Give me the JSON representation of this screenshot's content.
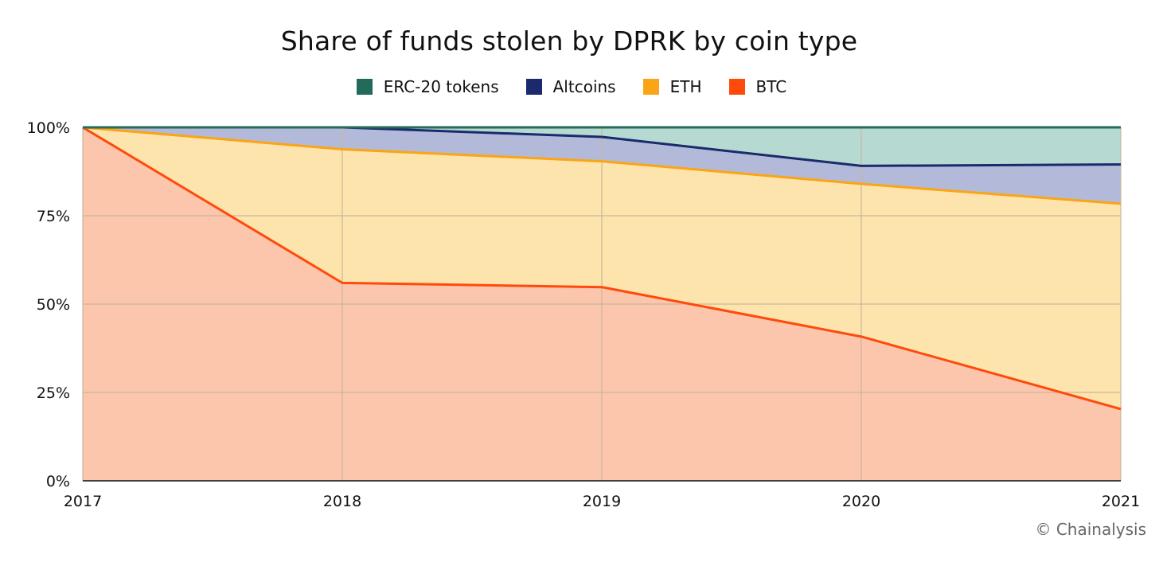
{
  "chart_data": {
    "type": "area",
    "stacked": true,
    "title": "Share of funds stolen by DPRK by coin type",
    "x": [
      "2017",
      "2018",
      "2019",
      "2020",
      "2021"
    ],
    "y_ticks": [
      "0%",
      "25%",
      "50%",
      "75%",
      "100%"
    ],
    "ylim": [
      0,
      100
    ],
    "grid": true,
    "legend_position": "top-center",
    "series": [
      {
        "name": "BTC",
        "values": [
          100,
          56,
          54.8,
          40.8,
          20.3
        ],
        "line_color": "#ff4a0c",
        "fill_color": "#fcc6ac"
      },
      {
        "name": "ETH",
        "values": [
          0,
          37.8,
          35.6,
          43.2,
          58.1
        ],
        "line_color": "#fba415",
        "fill_color": "#fce4ac"
      },
      {
        "name": "Altcoins",
        "values": [
          0,
          6.2,
          6.9,
          5.1,
          11.1
        ],
        "line_color": "#1a2a6c",
        "fill_color": "#b3bad9"
      },
      {
        "name": "ERC-20 tokens",
        "values": [
          0,
          0,
          2.7,
          10.9,
          10.5
        ],
        "line_color": "#226b5b",
        "fill_color": "#b6dad2"
      }
    ]
  },
  "legend": [
    {
      "label": "ERC-20 tokens",
      "color": "#226b5b"
    },
    {
      "label": "Altcoins",
      "color": "#1a2a6c"
    },
    {
      "label": "ETH",
      "color": "#fba415"
    },
    {
      "label": "BTC",
      "color": "#ff4a0c"
    }
  ],
  "credit": "© Chainalysis"
}
